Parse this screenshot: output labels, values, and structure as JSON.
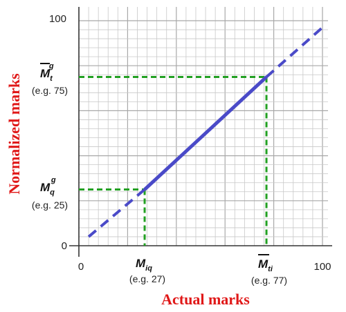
{
  "chart_data": {
    "type": "line",
    "xlabel": "Actual marks",
    "ylabel": "Normalized marks",
    "xlim": [
      0,
      100
    ],
    "ylim": [
      0,
      100
    ],
    "grid": true,
    "x_ticks": [
      "0",
      "100"
    ],
    "y_ticks": [
      "0",
      "100"
    ],
    "series": [
      {
        "style": "dashed",
        "color": "#4a4ac8",
        "x": [
          4,
          27
        ],
        "y": [
          4,
          25
        ]
      },
      {
        "style": "solid",
        "color": "#4a4ac8",
        "x": [
          27,
          77
        ],
        "y": [
          25,
          75
        ]
      },
      {
        "style": "dashed",
        "color": "#4a4ac8",
        "x": [
          77,
          100
        ],
        "y": [
          75,
          97
        ]
      }
    ],
    "guides": {
      "color": "#22a022",
      "points": [
        {
          "x": 27,
          "y": 25
        },
        {
          "x": 77,
          "y": 75
        }
      ]
    },
    "annotations": {
      "x_low": {
        "sym": "M",
        "sub": "iq",
        "note": "(e.g. 27)"
      },
      "x_high": {
        "sym": "M",
        "sub": "ti",
        "note": "(e.g. 77)"
      },
      "y_low": {
        "sym": "M",
        "sup": "g",
        "sub": "q",
        "note": "(e.g. 25)"
      },
      "y_high": {
        "sym": "M",
        "sup": "g",
        "sub": "t",
        "note": "(e.g. 75)"
      }
    }
  }
}
